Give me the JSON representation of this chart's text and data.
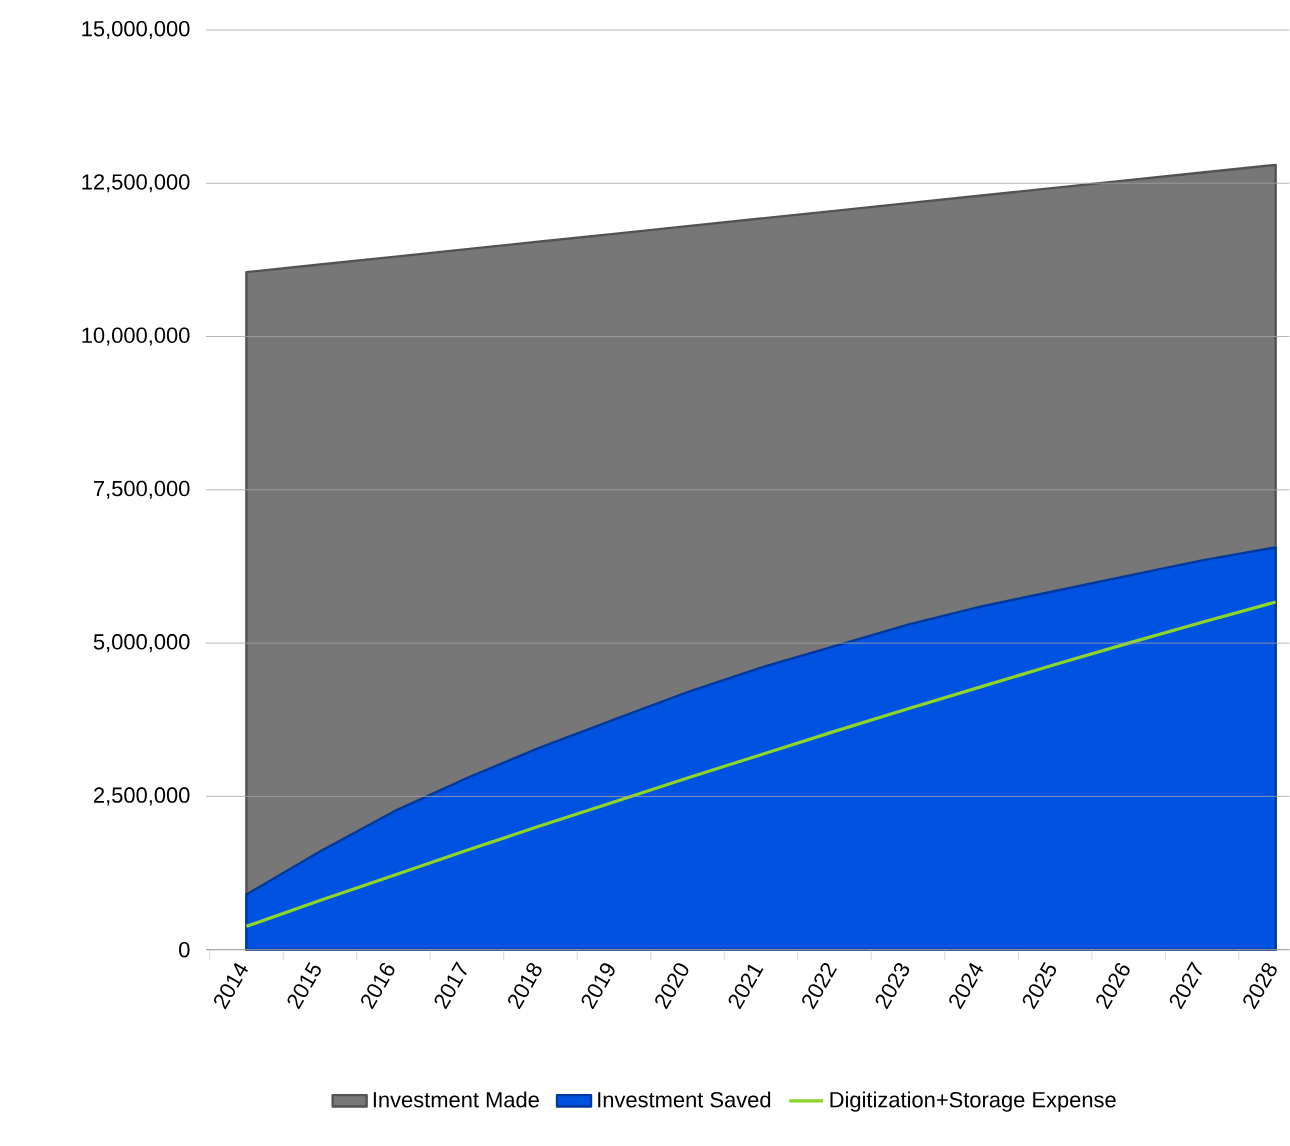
{
  "chart_data": {
    "type": "area",
    "categories": [
      "2014",
      "2015",
      "2016",
      "2017",
      "2018",
      "2019",
      "2020",
      "2021",
      "2022",
      "2023",
      "2024",
      "2025",
      "2026",
      "2027",
      "2028"
    ],
    "series": [
      {
        "name": "Investment Made",
        "color": "#777777",
        "values": [
          11050000,
          11175000,
          11300000,
          11425000,
          11550000,
          11675000,
          11800000,
          11925000,
          12050000,
          12175000,
          12300000,
          12425000,
          12550000,
          12675000,
          12800000
        ]
      },
      {
        "name": "Investment Saved",
        "color": "#0052e0",
        "values": [
          900000,
          1600000,
          2250000,
          2800000,
          3300000,
          3750000,
          4200000,
          4600000,
          4950000,
          5300000,
          5600000,
          5850000,
          6100000,
          6350000,
          6560000
        ]
      },
      {
        "name": "Digitization+Storage Expense",
        "type": "line",
        "color": "#8cd62a",
        "values": [
          380000,
          800000,
          1210000,
          1620000,
          2020000,
          2410000,
          2800000,
          3180000,
          3560000,
          3930000,
          4290000,
          4650000,
          5000000,
          5340000,
          5670000
        ]
      }
    ],
    "ylim": [
      0,
      15000000
    ],
    "yticks": [
      {
        "value": 0,
        "label": "0"
      },
      {
        "value": 2500000,
        "label": "2,500,000"
      },
      {
        "value": 5000000,
        "label": "5,000,000"
      },
      {
        "value": 7500000,
        "label": "7,500,000"
      },
      {
        "value": 10000000,
        "label": "10,000,000"
      },
      {
        "value": 12500000,
        "label": "12,500,000"
      },
      {
        "value": 15000000,
        "label": "15,000,000"
      }
    ],
    "grid": "y",
    "legend": "bottom",
    "marker": "none"
  }
}
